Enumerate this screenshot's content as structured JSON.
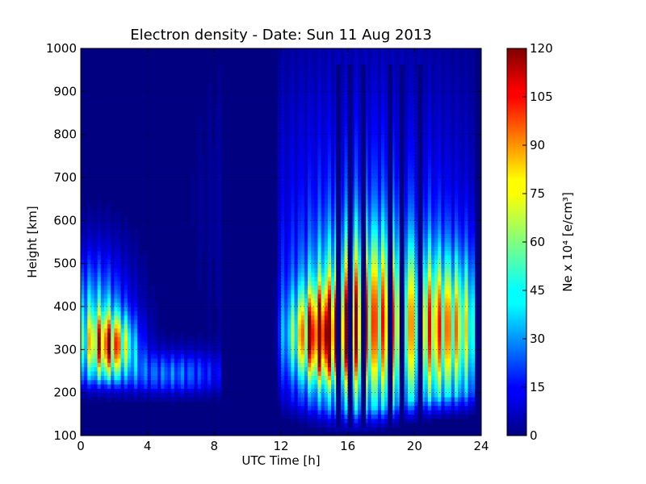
{
  "chart_data": {
    "type": "heatmap",
    "title": "Electron density - Date: Sun 11 Aug 2013",
    "xlabel": "UTC Time [h]",
    "ylabel": "Height [km]",
    "xlim": [
      0,
      24
    ],
    "ylim": [
      100,
      1000
    ],
    "x_ticks": [
      "0",
      "4",
      "8",
      "12",
      "16",
      "20",
      "24"
    ],
    "y_ticks": [
      "100",
      "200",
      "300",
      "400",
      "500",
      "600",
      "700",
      "800",
      "900",
      "1000"
    ],
    "grid": true,
    "colormap": "jet",
    "colorbar": {
      "label": "Ne x 10⁴ [e/cm³]",
      "range": [
        0,
        120
      ],
      "ticks": [
        "0",
        "15",
        "30",
        "45",
        "60",
        "75",
        "90",
        "105",
        "120"
      ]
    },
    "data_gaps_x": [
      15.3,
      16.0,
      16.8,
      18.4,
      19.1,
      20.2
    ],
    "approximate_peaks": [
      {
        "x": 1.8,
        "y": 310,
        "value": 90
      },
      {
        "x": 14.3,
        "y": 340,
        "value": 95
      },
      {
        "x": 22.0,
        "y": 350,
        "value": 65
      }
    ],
    "colors": {
      "background_low": "#00007f",
      "high": "#7f0000"
    }
  }
}
